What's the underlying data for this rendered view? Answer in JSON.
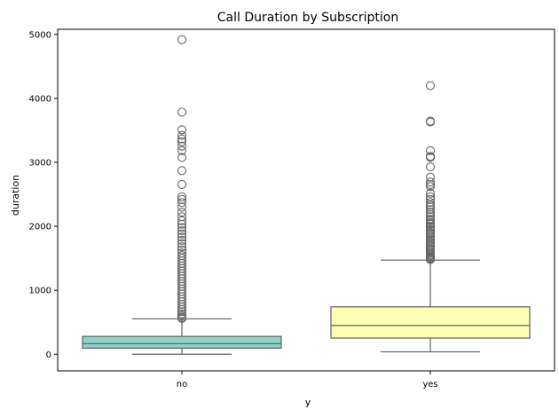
{
  "chart_data": {
    "type": "box",
    "title": "Call Duration by Subscription",
    "xlabel": "y",
    "ylabel": "duration",
    "categories": [
      "no",
      "yes"
    ],
    "ylim": [
      -260,
      5080
    ],
    "yticks": [
      0,
      1000,
      2000,
      3000,
      4000,
      5000
    ],
    "grid": false,
    "boxes": [
      {
        "category": "no",
        "color": "#8dd3c7",
        "whisker_low": 0,
        "q1": 95,
        "median": 164,
        "q3": 279,
        "whisker_high": 554,
        "outliers": [
          4918,
          3785,
          3509,
          3422,
          3366,
          3322,
          3253,
          3183,
          3076,
          2870,
          2653,
          2462,
          2420,
          2372,
          2300,
          2219,
          2150,
          2087,
          2033,
          1980,
          1930,
          1880,
          1830,
          1780,
          1730,
          1680,
          1630,
          1580,
          1540,
          1500,
          1460,
          1420,
          1380,
          1340,
          1300,
          1260,
          1220,
          1180,
          1140,
          1100,
          1060,
          1020,
          980,
          940,
          900,
          860,
          820,
          780,
          740,
          700,
          665,
          630,
          600,
          575,
          560
        ]
      },
      {
        "category": "yes",
        "color": "#ffffb3",
        "whisker_low": 37,
        "q1": 253,
        "median": 449,
        "q3": 741,
        "whisker_high": 1471,
        "outliers": [
          4199,
          3643,
          3631,
          3183,
          3094,
          3076,
          2929,
          2769,
          2692,
          2653,
          2621,
          2516,
          2462,
          2420,
          2372,
          2330,
          2300,
          2260,
          2219,
          2180,
          2150,
          2110,
          2087,
          2050,
          2033,
          2000,
          1980,
          1950,
          1930,
          1900,
          1880,
          1850,
          1830,
          1800,
          1780,
          1750,
          1730,
          1700,
          1680,
          1650,
          1630,
          1600,
          1580,
          1560,
          1540,
          1520,
          1500,
          1490,
          1480
        ]
      }
    ]
  }
}
